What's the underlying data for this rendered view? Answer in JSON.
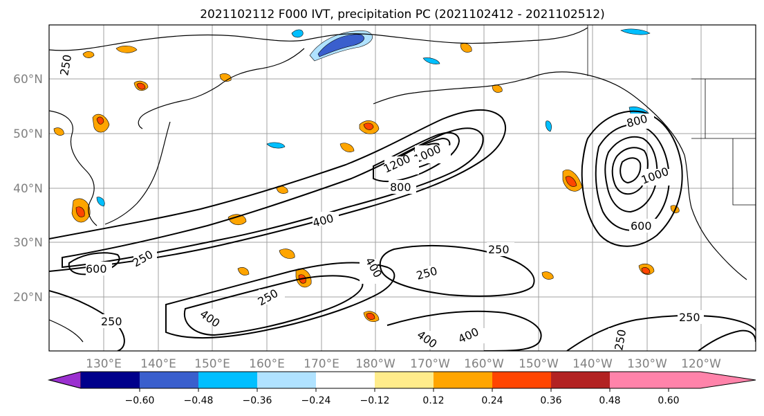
{
  "figure": {
    "title": "2021102112 F000 IVT, precipitation PC (2021102412 - 2021102512)"
  },
  "map": {
    "lat_labels": [
      "60°N",
      "50°N",
      "40°N",
      "30°N",
      "20°N"
    ],
    "lon_labels": [
      "130°E",
      "140°E",
      "150°E",
      "160°E",
      "170°E",
      "180°W",
      "170°W",
      "160°W",
      "150°W",
      "140°W",
      "130°W",
      "120°W"
    ],
    "ivt_contour_labels": [
      "250",
      "250",
      "250",
      "250",
      "250",
      "250",
      "250",
      "250",
      "400",
      "400",
      "400",
      "400",
      "400",
      "600",
      "600",
      "800",
      "800",
      "1000",
      "1000",
      "1200"
    ]
  },
  "colorbar": {
    "ticks": [
      "−0.60",
      "−0.48",
      "−0.36",
      "−0.24",
      "−0.12",
      "0.12",
      "0.24",
      "0.36",
      "0.48",
      "0.60"
    ],
    "colors": [
      "#9b30d0",
      "#00008b",
      "#3a5fcd",
      "#00bfff",
      "#b0e2ff",
      "#ffffff",
      "#ffec8b",
      "#ffa500",
      "#ff4500",
      "#b22222",
      "#ff83aa"
    ]
  },
  "colors": {
    "contour": "#000000",
    "coast": "#000000",
    "grid": "#a0a0a0",
    "neg_strong": "#3a5fcd",
    "neg_mid": "#00bfff",
    "neg_weak": "#b0e2ff",
    "pos_weak": "#ffec8b",
    "pos_mid": "#ffa500",
    "pos_strong": "#ff4500"
  }
}
